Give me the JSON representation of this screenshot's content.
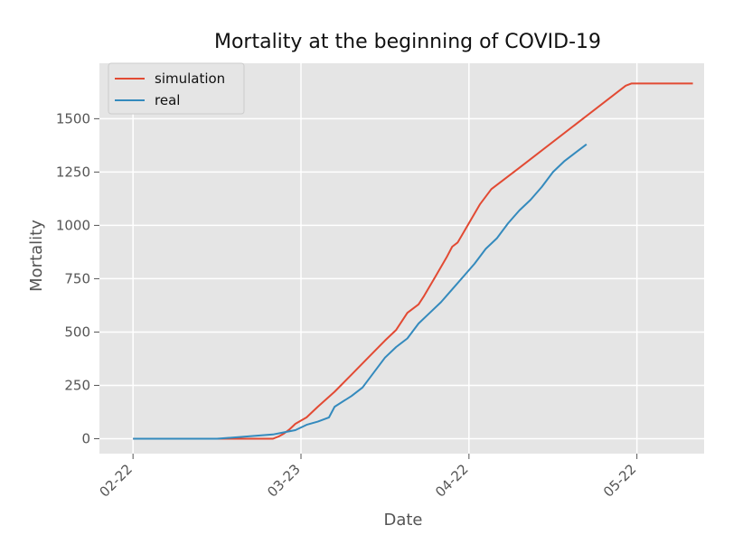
{
  "chart_data": {
    "type": "line",
    "title": "Mortality at the beginning of COVID-19",
    "xlabel": "Date",
    "ylabel": "Mortality",
    "x_axis": "date",
    "xlim": [
      "2020-02-16",
      "2020-06-03"
    ],
    "ylim": [
      -70,
      1760
    ],
    "xticks": [
      {
        "date": "2020-02-22",
        "label": "02-22"
      },
      {
        "date": "2020-03-23",
        "label": "03-23"
      },
      {
        "date": "2020-04-22",
        "label": "04-22"
      },
      {
        "date": "2020-05-22",
        "label": "05-22"
      }
    ],
    "yticks": [
      0,
      250,
      500,
      750,
      1000,
      1250,
      1500
    ],
    "grid": true,
    "legend": "top-left",
    "series": [
      {
        "name": "simulation",
        "color": "#e24a33",
        "points": [
          [
            "2020-02-22",
            0
          ],
          [
            "2020-03-08",
            0
          ],
          [
            "2020-03-18",
            0
          ],
          [
            "2020-03-19",
            10
          ],
          [
            "2020-03-20",
            25
          ],
          [
            "2020-03-21",
            45
          ],
          [
            "2020-03-22",
            70
          ],
          [
            "2020-03-24",
            100
          ],
          [
            "2020-03-26",
            150
          ],
          [
            "2020-03-29",
            220
          ],
          [
            "2020-04-01",
            300
          ],
          [
            "2020-04-04",
            380
          ],
          [
            "2020-04-07",
            460
          ],
          [
            "2020-04-09",
            510
          ],
          [
            "2020-04-11",
            590
          ],
          [
            "2020-04-13",
            630
          ],
          [
            "2020-04-14",
            670
          ],
          [
            "2020-04-16",
            760
          ],
          [
            "2020-04-18",
            850
          ],
          [
            "2020-04-19",
            900
          ],
          [
            "2020-04-20",
            920
          ],
          [
            "2020-04-22",
            1010
          ],
          [
            "2020-04-24",
            1100
          ],
          [
            "2020-04-26",
            1170
          ],
          [
            "2020-05-01",
            1270
          ],
          [
            "2020-05-20",
            1655
          ],
          [
            "2020-05-21",
            1665
          ],
          [
            "2020-06-01",
            1665
          ]
        ]
      },
      {
        "name": "real",
        "color": "#348abd",
        "points": [
          [
            "2020-02-22",
            0
          ],
          [
            "2020-03-08",
            0
          ],
          [
            "2020-03-18",
            20
          ],
          [
            "2020-03-20",
            30
          ],
          [
            "2020-03-22",
            40
          ],
          [
            "2020-03-24",
            65
          ],
          [
            "2020-03-26",
            80
          ],
          [
            "2020-03-28",
            100
          ],
          [
            "2020-03-29",
            150
          ],
          [
            "2020-04-01",
            200
          ],
          [
            "2020-04-03",
            240
          ],
          [
            "2020-04-05",
            310
          ],
          [
            "2020-04-07",
            380
          ],
          [
            "2020-04-09",
            430
          ],
          [
            "2020-04-11",
            470
          ],
          [
            "2020-04-13",
            540
          ],
          [
            "2020-04-15",
            590
          ],
          [
            "2020-04-17",
            640
          ],
          [
            "2020-04-19",
            700
          ],
          [
            "2020-04-21",
            760
          ],
          [
            "2020-04-23",
            820
          ],
          [
            "2020-04-25",
            890
          ],
          [
            "2020-04-27",
            940
          ],
          [
            "2020-04-29",
            1010
          ],
          [
            "2020-05-01",
            1070
          ],
          [
            "2020-05-03",
            1120
          ],
          [
            "2020-05-05",
            1180
          ],
          [
            "2020-05-07",
            1250
          ],
          [
            "2020-05-09",
            1300
          ],
          [
            "2020-05-11",
            1340
          ],
          [
            "2020-05-13",
            1380
          ]
        ]
      }
    ]
  }
}
